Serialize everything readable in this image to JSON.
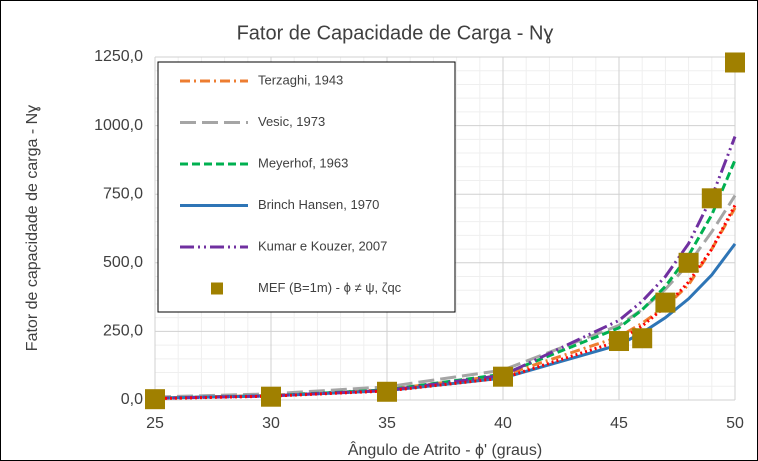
{
  "chart_data": {
    "type": "line",
    "title": "Fator de Capacidade de Carga - Nɣ",
    "x_label": "Ângulo de Atrito - ϕ' (graus)",
    "y_label": "Fator de capacidade de carga - Nɣ",
    "x": [
      25,
      30,
      35,
      40,
      45,
      46,
      47,
      48,
      49,
      50
    ],
    "xlim": [
      25,
      50
    ],
    "xticks": [
      25,
      30,
      35,
      40,
      45,
      50
    ],
    "ylim": [
      0,
      1250
    ],
    "yticks": [
      {
        "value": 0,
        "label": "0,0"
      },
      {
        "value": 250,
        "label": "250,0"
      },
      {
        "value": 500,
        "label": "500,0"
      },
      {
        "value": 750,
        "label": "750,0"
      },
      {
        "value": 1000,
        "label": "1000,0"
      },
      {
        "value": 1250,
        "label": "1250,0"
      }
    ],
    "grid": true,
    "minor_grid": true,
    "legend": "upper left",
    "series": [
      {
        "name": "Terzaghi, 1943",
        "color": "#ed7d31",
        "line_style": "dashdot",
        "values": [
          7,
          17,
          38,
          90,
          230,
          280,
          340,
          420,
          550,
          700
        ]
      },
      {
        "name": "Vesic, 1973",
        "color": "#a5a5a5",
        "line_style": "longdash",
        "values": [
          10.9,
          22.4,
          48,
          109,
          272,
          330,
          404,
          496,
          613,
          745
        ]
      },
      {
        "name": "Meyerhof, 1963",
        "color": "#00b050",
        "line_style": "dash",
        "values": [
          6.8,
          15.7,
          37,
          94,
          263,
          329,
          414,
          527,
          675,
          874
        ]
      },
      {
        "name": "Brinch Hansen, 1970",
        "color": "#2e75b6",
        "line_style": "solid",
        "values": [
          6.8,
          15.1,
          34,
          80,
          201,
          245,
          300,
          369,
          456,
          569
        ]
      },
      {
        "name": "Kumar e Kouzer, 2007",
        "color": "#7030a0",
        "line_style": "dashdotdot",
        "values": [
          6,
          15,
          35,
          90,
          290,
          360,
          450,
          570,
          740,
          960
        ]
      },
      {
        "color": "#ff0000",
        "line_style": "dotted",
        "values": [
          5,
          14,
          33,
          80,
          215,
          270,
          340,
          430,
          550,
          710
        ]
      },
      {
        "name": "MEF (B=1m) - ϕ ≠ ψ, ζqc",
        "color": "#a08000",
        "line_style": "none",
        "marker": "square",
        "values": [
          3,
          12,
          30,
          85,
          215,
          225,
          355,
          500,
          735,
          1230
        ]
      }
    ]
  }
}
